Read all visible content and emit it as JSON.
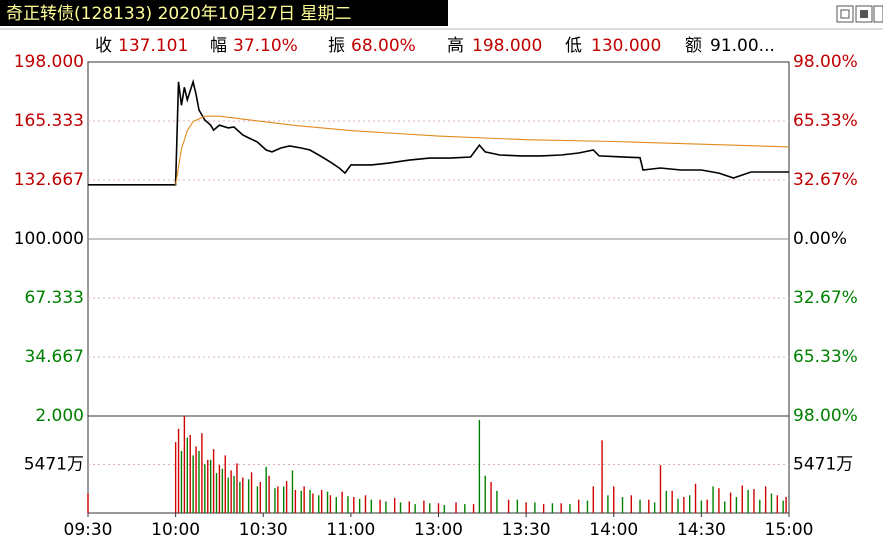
{
  "header": {
    "title": "奇正转债(128133) 2020年10月27日 星期二"
  },
  "stats": [
    {
      "label": "收",
      "value": "137.101"
    },
    {
      "label": "幅",
      "value": "37.10%"
    },
    {
      "label": "振",
      "value": "68.00%"
    },
    {
      "label": "高",
      "value": "198.000"
    },
    {
      "label": "低",
      "value": "130.000"
    },
    {
      "label": "额",
      "value": "91.00..."
    }
  ],
  "chart_data": [
    {
      "type": "line",
      "xlim": [
        0,
        240
      ],
      "ylim": [
        2,
        198
      ],
      "yticks": [
        {
          "value": 198,
          "label": "198.000"
        },
        {
          "value": 165.333,
          "label": "165.333"
        },
        {
          "value": 132.667,
          "label": "132.667"
        },
        {
          "value": 100,
          "label": "100.000"
        },
        {
          "value": 67.333,
          "label": "67.333"
        },
        {
          "value": 34.667,
          "label": "34.667"
        },
        {
          "value": 2,
          "label": "2.000"
        }
      ],
      "y2lim": [
        -98,
        98
      ],
      "y2ticks": [
        {
          "value": 98,
          "label": "98.00%"
        },
        {
          "value": 65.33,
          "label": "65.33%"
        },
        {
          "value": 32.67,
          "label": "32.67%"
        },
        {
          "value": 0,
          "label": "0.00%"
        },
        {
          "value": -32.67,
          "label": "32.67%"
        },
        {
          "value": -65.33,
          "label": "65.33%"
        },
        {
          "value": -98,
          "label": "98.00%"
        }
      ],
      "grid": true,
      "series": [
        {
          "color": "#000000",
          "x": [
            0,
            30,
            31,
            32,
            33,
            34,
            36,
            37,
            38,
            40,
            42,
            43,
            45,
            48,
            50,
            53,
            55,
            58,
            61,
            63,
            66,
            69,
            73,
            76,
            79,
            83,
            86,
            88,
            90,
            97,
            103,
            110,
            117,
            124,
            131,
            134,
            136,
            141,
            148,
            155,
            162,
            168,
            173,
            175,
            182,
            189,
            190,
            196,
            203,
            210,
            216,
            221,
            227,
            233,
            240
          ],
          "values": [
            130,
            130,
            187,
            174,
            184,
            177,
            187,
            180,
            171.4,
            165.9,
            163,
            160.3,
            163,
            161.5,
            162,
            157.6,
            156,
            153.7,
            149.3,
            148.2,
            150.4,
            151.5,
            150.4,
            149.3,
            146.5,
            142.6,
            139.3,
            136.5,
            141,
            141,
            142,
            143.7,
            144.8,
            144.8,
            145.4,
            152,
            148.2,
            146.5,
            146,
            146,
            146.5,
            147.6,
            149.3,
            146,
            145.5,
            145,
            138.2,
            139.3,
            138.2,
            138.2,
            136.5,
            133.8,
            137.1,
            137.1,
            137.101
          ]
        },
        {
          "color": "#e08a1e",
          "x": [
            30,
            32,
            34,
            36,
            40,
            45,
            55,
            70,
            90,
            120,
            150,
            180,
            210,
            240
          ],
          "values": [
            130,
            150,
            160,
            165,
            168,
            168,
            166,
            163,
            160,
            157,
            155,
            154,
            152.5,
            151
          ]
        }
      ]
    },
    {
      "type": "bar",
      "xlim": [
        0,
        240
      ],
      "xticks": [
        {
          "value": 0,
          "label": "09:30"
        },
        {
          "value": 30,
          "label": "10:00"
        },
        {
          "value": 60,
          "label": "10:30"
        },
        {
          "value": 90,
          "label": "11:00"
        },
        {
          "value": 120,
          "label": "13:00"
        },
        {
          "value": 150,
          "label": "13:30"
        },
        {
          "value": 180,
          "label": "14:00"
        },
        {
          "value": 210,
          "label": "14:30"
        },
        {
          "value": 240,
          "label": "15:00"
        }
      ],
      "ylim": [
        0,
        10942
      ],
      "yticks": [
        {
          "value": 5471,
          "label": "5471万"
        }
      ],
      "y2ticks": [
        {
          "value": 5471,
          "label": "5471万"
        }
      ],
      "series": [
        {
          "color": "#d00000",
          "x": [
            0,
            30,
            31,
            33,
            35,
            37,
            39,
            41,
            43,
            45,
            47,
            49,
            51,
            53,
            56,
            59,
            62,
            65,
            68,
            71,
            74,
            77,
            80,
            83,
            87,
            91,
            95,
            100,
            105,
            110,
            115,
            120,
            126,
            132,
            138,
            144,
            150,
            156,
            162,
            168,
            173,
            176,
            180,
            186,
            192,
            196,
            200,
            204,
            208,
            212,
            216,
            220,
            224,
            228,
            232,
            236,
            239
          ],
          "values": [
            2200,
            8000,
            9500,
            10942,
            8800,
            7500,
            9000,
            6000,
            7200,
            5400,
            6500,
            4800,
            5600,
            4000,
            4600,
            3500,
            4200,
            3000,
            3600,
            2600,
            3000,
            2200,
            2600,
            2000,
            2400,
            1800,
            2000,
            1500,
            1700,
            1300,
            1400,
            1100,
            1200,
            1000,
            3500,
            1500,
            1200,
            1000,
            1100,
            1500,
            3000,
            8200,
            3000,
            2000,
            1500,
            5400,
            2500,
            1800,
            3300,
            1500,
            2800,
            2300,
            3100,
            2700,
            3000,
            2000,
            1800
          ]
        },
        {
          "color": "#008000",
          "x": [
            32,
            34,
            36,
            38,
            40,
            42,
            44,
            46,
            48,
            50,
            52,
            55,
            58,
            61,
            64,
            67,
            70,
            73,
            76,
            79,
            82,
            85,
            89,
            93,
            97,
            102,
            107,
            112,
            117,
            122,
            129,
            134,
            136,
            140,
            147,
            153,
            159,
            165,
            171,
            178,
            183,
            189,
            194,
            198,
            202,
            206,
            210,
            214,
            218,
            222,
            226,
            230,
            234,
            238
          ],
          "values": [
            7000,
            8500,
            6500,
            7000,
            5500,
            6000,
            4500,
            5000,
            4000,
            4200,
            3500,
            3800,
            3000,
            5200,
            2800,
            3000,
            4800,
            2500,
            2600,
            2000,
            2400,
            1800,
            1900,
            1600,
            1500,
            1300,
            1200,
            1000,
            1100,
            900,
            1000,
            10500,
            4200,
            2500,
            1500,
            1200,
            1100,
            1000,
            1400,
            2000,
            1800,
            1500,
            1200,
            2500,
            1600,
            2000,
            1400,
            3000,
            1300,
            1800,
            2600,
            1500,
            2200,
            1400
          ]
        }
      ]
    }
  ]
}
